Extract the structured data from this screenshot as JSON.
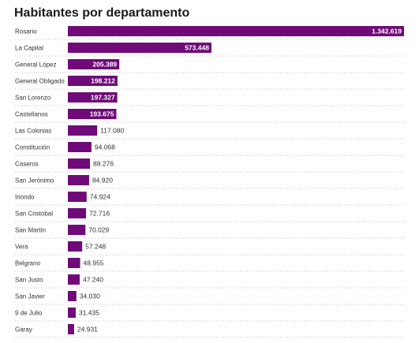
{
  "chart_data": {
    "type": "bar",
    "orientation": "horizontal",
    "title": "Habitantes por departamento",
    "bar_color": "#6f0a78",
    "xlim": [
      0,
      1342619
    ],
    "categories": [
      "Rosario",
      "La Capital",
      "General López",
      "General Obligado",
      "San Lorenzo",
      "Castellanos",
      "Las Colonias",
      "Constitución",
      "Caseros",
      "San Jerónimo",
      "Iriondo",
      "San Cristóbal",
      "San Martín",
      "Vera",
      "Belgrano",
      "San Justo",
      "San Javier",
      "9 de Julio",
      "Garay"
    ],
    "values": [
      1342619,
      573448,
      205389,
      198212,
      197327,
      193675,
      117080,
      94068,
      88276,
      84920,
      74924,
      72716,
      70029,
      57248,
      48955,
      47240,
      34030,
      31435,
      24931
    ],
    "value_labels": [
      "1.342.619",
      "573.448",
      "205.389",
      "198.212",
      "197.327",
      "193.675",
      "117.080",
      "94.068",
      "88.276",
      "84.920",
      "74.924",
      "72.716",
      "70.029",
      "57.248",
      "48.955",
      "47.240",
      "34.030",
      "31.435",
      "24.931"
    ]
  }
}
